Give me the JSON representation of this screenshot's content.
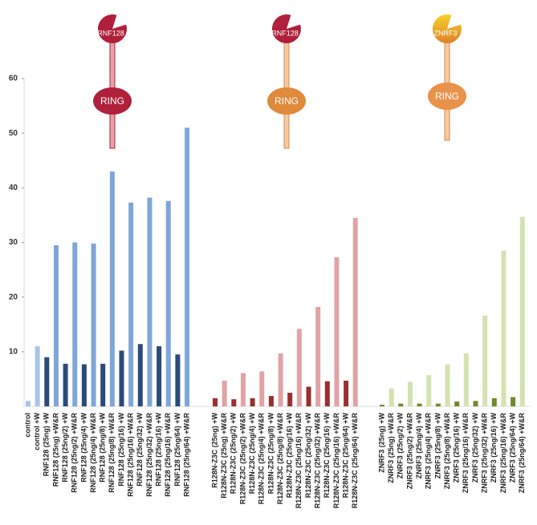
{
  "chart_data": {
    "type": "bar",
    "ylim": [
      0,
      60
    ],
    "yticks": [
      10,
      20,
      30,
      40,
      50,
      60
    ],
    "groups": [
      {
        "protein": "RNF128",
        "domain": "RING",
        "categories": [
          "control",
          "control +W",
          "RNF128 (25ng) +W",
          "RNF128 (25ng) +W&R",
          "RNF128 (25ng/2) +W",
          "RNF128 (25ng/2) +W&R",
          "RNF128 (25ng/4) +W",
          "RNF128 (25ng/4) +W&R",
          "RNF128 (25ng/8) +W",
          "RNF128 (25ng/8) +W&R",
          "RNF128 (25ng/16) +W",
          "RNF128 (25ng/16) +W&R",
          "RNF128 (25ng/32) +W",
          "RNF128 (25ng/32) +W&R",
          "RNF128 (25ng/16) +W",
          "RNF128 (25ng/16) +W&R",
          "RNF128 (25ng/64) +W",
          "RNF128 (25ng/64) +W&R"
        ],
        "values": [
          1,
          11,
          9,
          29.5,
          7.8,
          30,
          7.7,
          29.8,
          7.8,
          43,
          10.2,
          37.3,
          11.4,
          38.2,
          11,
          37.6,
          9.5,
          51
        ],
        "colors": [
          "#a9c4e8",
          "#a9c4e8",
          "#2a4a7a",
          "#7fa6d8",
          "#2a4a7a",
          "#7fa6d8",
          "#2a4a7a",
          "#7fa6d8",
          "#2a4a7a",
          "#7fa6d8",
          "#2a4a7a",
          "#7fa6d8",
          "#2a4a7a",
          "#7fa6d8",
          "#2a4a7a",
          "#7fa6d8",
          "#2a4a7a",
          "#7fa6d8"
        ]
      },
      {
        "protein": "RNF128",
        "domain": "RING",
        "categories": [
          "R128N-Z3C (25ng) +W",
          "R128N-Z3C (25ng) +W&R",
          "R128N-Z3C (25ng/2) +W",
          "R128N-Z3C (25ng/2) +W&R",
          "R128N-Z3C (25ng/4) +W",
          "R128N-Z3C (25ng/4) +W&R",
          "R128N-Z3C (25ng/8) +W",
          "R128N-Z3C (25ng/8) +W&R",
          "R128N-Z3C (25ng/16) +W",
          "R128N-Z3C (25ng/16) +W&R",
          "R128N-Z3C (25ng/32) +W",
          "R128N-Z3C (25ng/32) +W&R",
          "R128N-Z3C (25ng/16) +W",
          "R128N-Z3C (25ng/16) +W&R",
          "R128N-Z3C (25ng/64) +W",
          "R128N-Z3C (25ng/64) +W&R"
        ],
        "values": [
          1.5,
          4.7,
          1.3,
          6.1,
          1.5,
          6.4,
          1.9,
          9.7,
          2.5,
          14.2,
          3.6,
          18.2,
          4.6,
          27.3,
          4.7,
          34.5
        ],
        "colors": [
          "#9a2f2f",
          "#e2a3a6",
          "#9a2f2f",
          "#e2a3a6",
          "#9a2f2f",
          "#e2a3a6",
          "#9a2f2f",
          "#e2a3a6",
          "#9a2f2f",
          "#e2a3a6",
          "#9a2f2f",
          "#e2a3a6",
          "#9a2f2f",
          "#e2a3a6",
          "#9a2f2f",
          "#e2a3a6"
        ]
      },
      {
        "protein": "ZNRF3",
        "domain": "RING",
        "categories": [
          "ZNRF3 (25ng) +W",
          "ZNRF3 (25ng) +W&R",
          "ZNRF3 (25ng/2) +W",
          "ZNRF3 (25ng/2) +W&R",
          "ZNRF3 (25ng/4) +W",
          "ZNRF3 (25ng/4) +W&R",
          "ZNRF3 (25ng/8) +W",
          "ZNRF3 (25ng/8) +W&R",
          "ZNRF3 (25ng/16) +W",
          "ZNRF3 (25ng/16) +W&R",
          "ZNRF3 (25ng/32) +W",
          "ZNRF3 (25ng/32) +W&R",
          "ZNRF3 (25ng/16) +W",
          "ZNRF3 (25ng/16) +W&R",
          "ZNRF3 (25ng/64) +W",
          "ZNRF3 (25ng/64) +W&R"
        ],
        "values": [
          0.3,
          3.3,
          0.5,
          4.5,
          0.5,
          5.7,
          0.5,
          7.7,
          0.9,
          9.7,
          1,
          16.6,
          1.5,
          28.5,
          1.7,
          34.7
        ],
        "colors": [
          "#6f8a2c",
          "#d3e2b0",
          "#6f8a2c",
          "#d3e2b0",
          "#6f8a2c",
          "#d3e2b0",
          "#6f8a2c",
          "#d3e2b0",
          "#6f8a2c",
          "#d3e2b0",
          "#6f8a2c",
          "#d3e2b0",
          "#6f8a2c",
          "#d3e2b0",
          "#6f8a2c",
          "#d3e2b0"
        ]
      }
    ]
  }
}
